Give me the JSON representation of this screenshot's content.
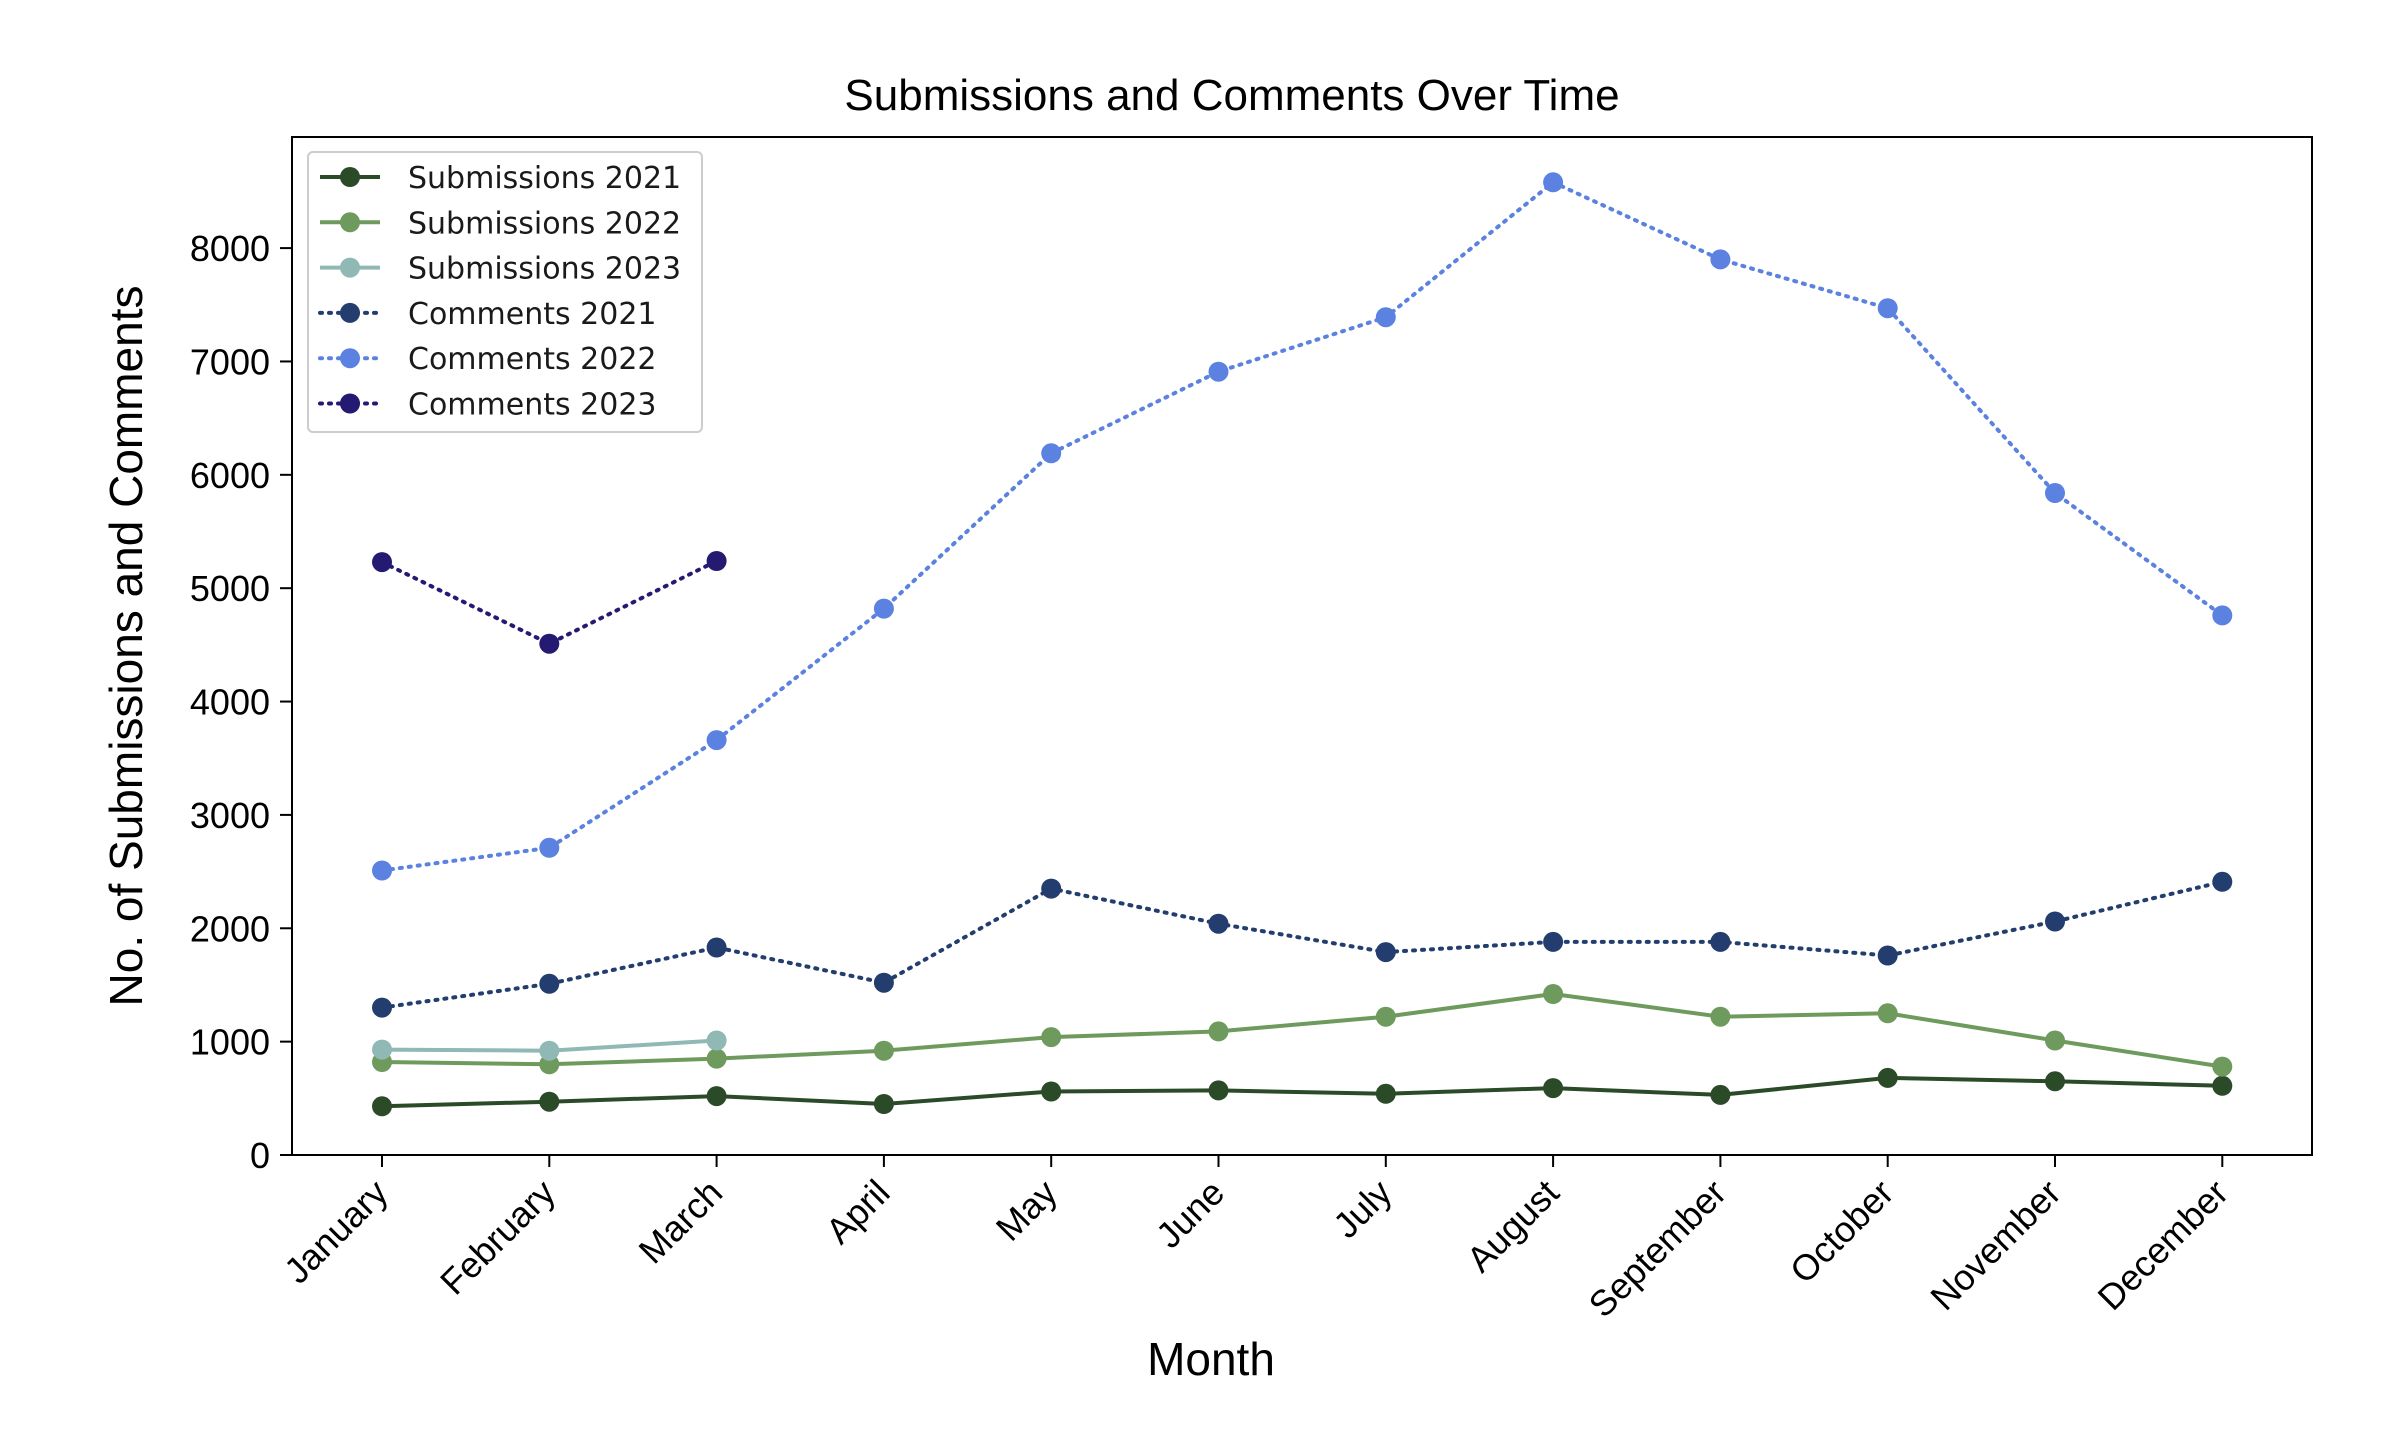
{
  "chart_data": {
    "type": "line",
    "title": "Submissions and Comments Over Time",
    "xlabel": "Month",
    "ylabel": "No. of Submissions and Comments",
    "categories": [
      "January",
      "February",
      "March",
      "April",
      "May",
      "June",
      "July",
      "August",
      "September",
      "October",
      "November",
      "December"
    ],
    "yticks": [
      0,
      1000,
      2000,
      3000,
      4000,
      5000,
      6000,
      7000,
      8000
    ],
    "ylim": [
      0,
      8980
    ],
    "grid": false,
    "legend_position": "top-left",
    "series": [
      {
        "name": "Submissions 2021",
        "style": "solid",
        "color": "#2a4a28",
        "values": [
          430,
          470,
          520,
          450,
          560,
          570,
          540,
          590,
          530,
          680,
          650,
          610
        ]
      },
      {
        "name": "Submissions 2022",
        "style": "solid",
        "color": "#6e9a5e",
        "values": [
          820,
          800,
          850,
          920,
          1040,
          1090,
          1220,
          1420,
          1220,
          1250,
          1010,
          780
        ]
      },
      {
        "name": "Submissions 2023",
        "style": "solid",
        "color": "#90b8b4",
        "values": [
          930,
          920,
          1010,
          null,
          null,
          null,
          null,
          null,
          null,
          null,
          null,
          null
        ]
      },
      {
        "name": "Comments 2021",
        "style": "dotted",
        "color": "#233d6e",
        "values": [
          1300,
          1510,
          1830,
          1520,
          2350,
          2040,
          1790,
          1880,
          1880,
          1760,
          2060,
          2410
        ]
      },
      {
        "name": "Comments 2022",
        "style": "dotted",
        "color": "#5b82e0",
        "values": [
          2510,
          2710,
          3660,
          4820,
          6190,
          6910,
          7390,
          8580,
          7900,
          7470,
          5840,
          4760
        ]
      },
      {
        "name": "Comments 2023",
        "style": "dotted",
        "color": "#241a72",
        "values": [
          5230,
          4510,
          5240,
          null,
          null,
          null,
          null,
          null,
          null,
          null,
          null,
          null
        ]
      }
    ]
  }
}
